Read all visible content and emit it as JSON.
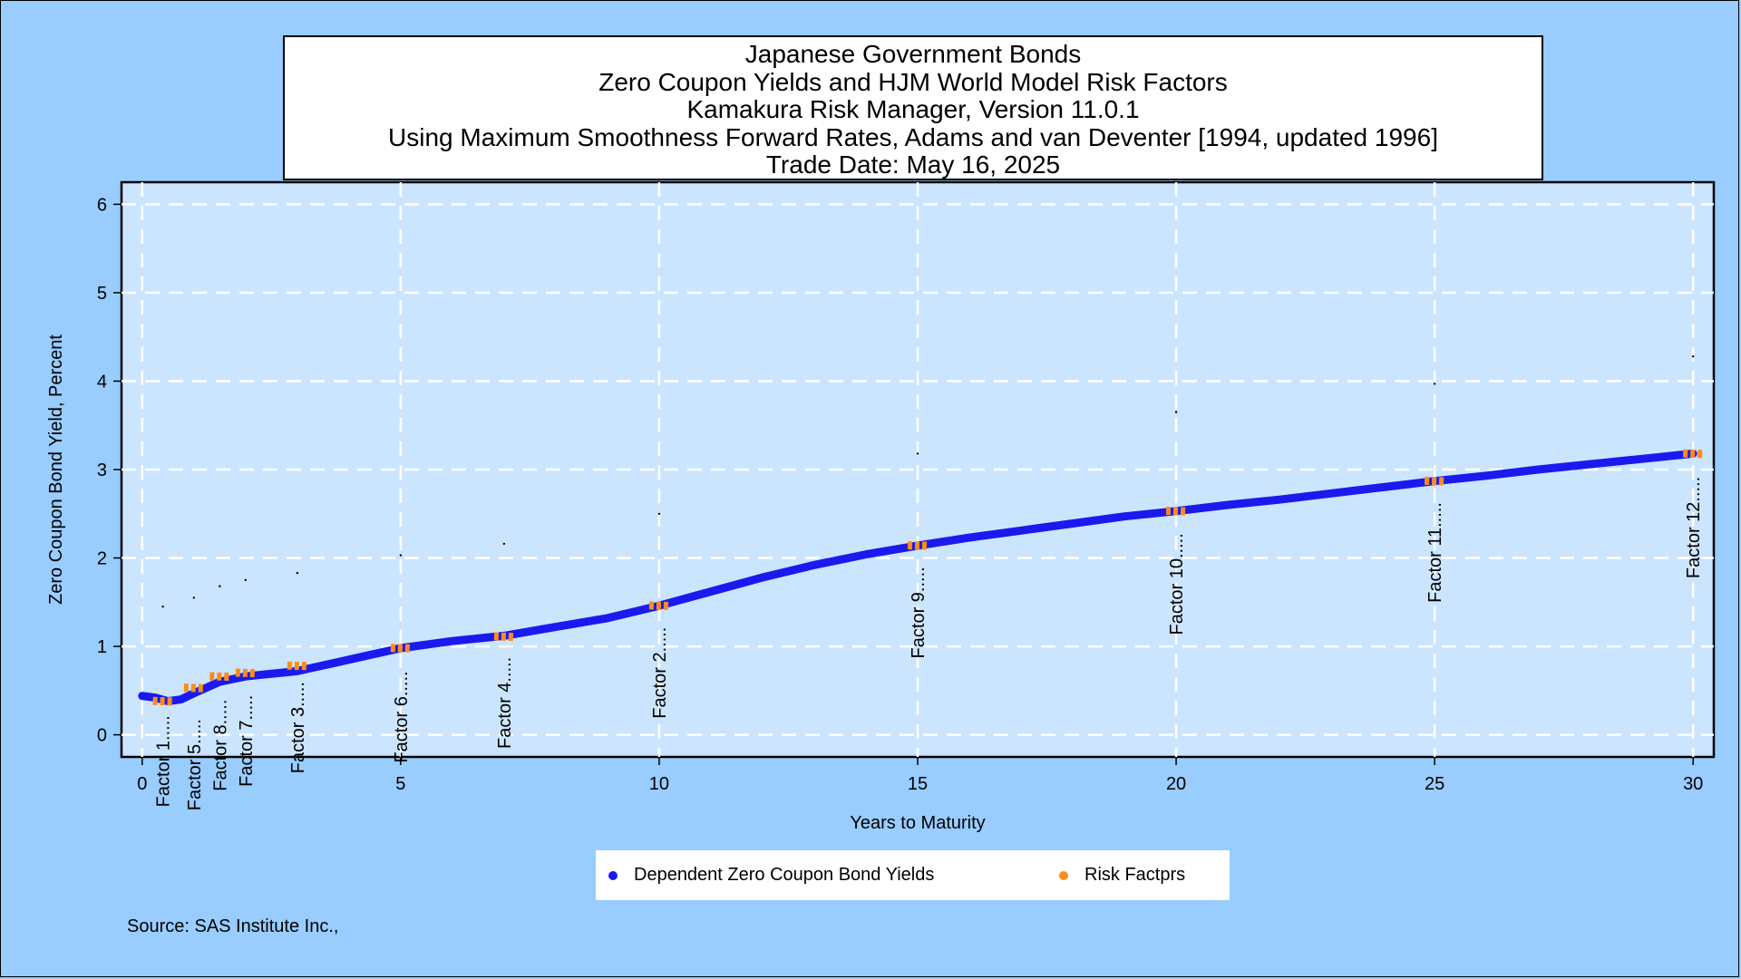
{
  "title_lines": [
    "Japanese Government Bonds",
    "Zero Coupon Yields and HJM World Model Risk Factors",
    "Kamakura Risk Manager, Version 11.0.1",
    "Using Maximum Smoothness Forward Rates, Adams and van Deventer [1994, updated 1996]",
    "Trade Date: May 16, 2025"
  ],
  "source_note": "Source: SAS Institute Inc.,",
  "colors": {
    "background": "#99ccff",
    "plot_area": "#cce5ff",
    "series_curve": "#1a1aee",
    "risk_factors": "#ff8c1a",
    "gridline": "#ffffff"
  },
  "legend": {
    "placement": "bottom-center",
    "items": [
      {
        "label": "Dependent Zero Coupon Bond Yields",
        "color": "#1a1aee"
      },
      {
        "label": "Risk Factprs",
        "color": "#ff8c1a"
      }
    ]
  },
  "chart_data": {
    "type": "scatter",
    "xlabel": "Years to Maturity",
    "ylabel": "Zero Coupon Bond Yield, Percent",
    "xlim": [
      -0.4,
      30.4
    ],
    "ylim": [
      -0.25,
      6.25
    ],
    "xticks": [
      0,
      5,
      10,
      15,
      20,
      25,
      30
    ],
    "yticks": [
      0,
      1,
      2,
      3,
      4,
      5,
      6
    ],
    "grid": true,
    "series": [
      {
        "name": "Dependent Zero Coupon Bond Yields",
        "curve": [
          [
            0,
            0.44
          ],
          [
            0.25,
            0.42
          ],
          [
            0.5,
            0.38
          ],
          [
            0.75,
            0.4
          ],
          [
            1.0,
            0.47
          ],
          [
            1.5,
            0.6
          ],
          [
            2.0,
            0.66
          ],
          [
            3.0,
            0.72
          ],
          [
            4.0,
            0.85
          ],
          [
            5.0,
            0.98
          ],
          [
            6.0,
            1.06
          ],
          [
            7.0,
            1.12
          ],
          [
            8.0,
            1.22
          ],
          [
            9.0,
            1.32
          ],
          [
            10.0,
            1.46
          ],
          [
            11.0,
            1.62
          ],
          [
            12.0,
            1.78
          ],
          [
            13.0,
            1.92
          ],
          [
            14.0,
            2.04
          ],
          [
            15.0,
            2.14
          ],
          [
            16.0,
            2.23
          ],
          [
            17.0,
            2.31
          ],
          [
            18.0,
            2.39
          ],
          [
            19.0,
            2.47
          ],
          [
            20.0,
            2.53
          ],
          [
            21.0,
            2.6
          ],
          [
            22.0,
            2.66
          ],
          [
            23.0,
            2.73
          ],
          [
            24.0,
            2.8
          ],
          [
            25.0,
            2.87
          ],
          [
            26.0,
            2.93
          ],
          [
            27.0,
            3.0
          ],
          [
            28.0,
            3.06
          ],
          [
            29.0,
            3.12
          ],
          [
            30.0,
            3.18
          ]
        ]
      },
      {
        "name": "Risk Factprs",
        "points": [
          {
            "label": "Factor 1.....",
            "x": 0.4,
            "y": 0.38,
            "label_top": 0.22,
            "marker_y": 1.45
          },
          {
            "label": "Factor 5.....",
            "x": 1.0,
            "y": 0.53,
            "label_top": 0.18,
            "marker_y": 1.55
          },
          {
            "label": "Factor 8.....",
            "x": 1.5,
            "y": 0.66,
            "label_top": 0.4,
            "marker_y": 1.68
          },
          {
            "label": "Factor 7.....",
            "x": 2.0,
            "y": 0.7,
            "label_top": 0.45,
            "marker_y": 1.75
          },
          {
            "label": "Factor 3.....",
            "x": 3.0,
            "y": 0.78,
            "label_top": 0.6,
            "marker_y": 1.83
          },
          {
            "label": "Factor 6.....",
            "x": 5.0,
            "y": 0.98,
            "label_top": 0.72,
            "marker_y": 2.03
          },
          {
            "label": "Factor 4.....",
            "x": 7.0,
            "y": 1.11,
            "label_top": 0.88,
            "marker_y": 2.16
          },
          {
            "label": "Factor 2.....",
            "x": 10.0,
            "y": 1.46,
            "label_top": 1.22,
            "marker_y": 2.5
          },
          {
            "label": "Factor 9.....",
            "x": 15.0,
            "y": 2.14,
            "label_top": 1.9,
            "marker_y": 3.18
          },
          {
            "label": "Factor 10.....",
            "x": 20.0,
            "y": 2.53,
            "label_top": 2.28,
            "marker_y": 3.65
          },
          {
            "label": "Factor 11.....",
            "x": 25.0,
            "y": 2.87,
            "label_top": 2.63,
            "marker_y": 3.97
          },
          {
            "label": "Factor 12.....",
            "x": 30.0,
            "y": 3.18,
            "label_top": 2.92,
            "marker_y": 4.28
          }
        ]
      }
    ]
  }
}
